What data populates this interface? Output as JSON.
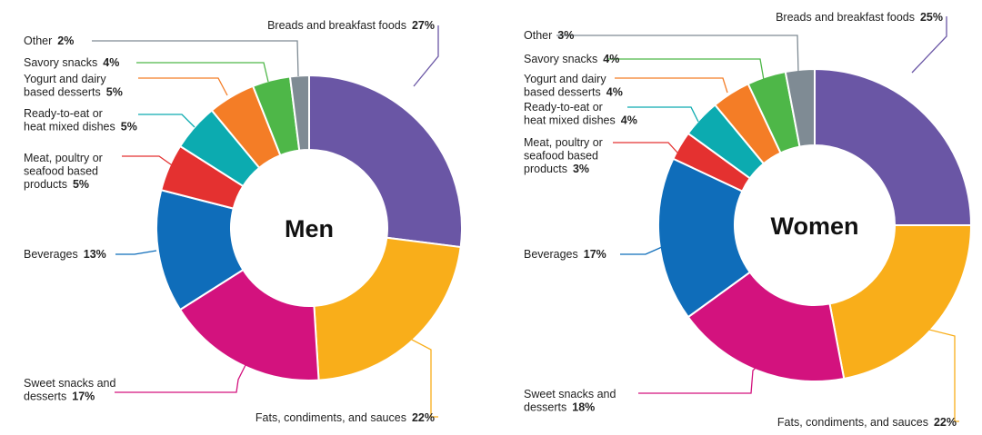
{
  "chart_data": [
    {
      "type": "pie",
      "variant": "donut",
      "title": "Men",
      "categories": [
        "Breads and breakfast foods",
        "Fats, condiments, and sauces",
        "Sweet snacks and desserts",
        "Beverages",
        "Meat, poultry or seafood based products",
        "Ready-to-eat or heat mixed dishes",
        "Yogurt and dairy based desserts",
        "Savory snacks",
        "Other"
      ],
      "values": [
        27,
        22,
        17,
        13,
        5,
        5,
        5,
        4,
        2
      ],
      "value_labels": [
        "27%",
        "22%",
        "17%",
        "13%",
        "5%",
        "5%",
        "5%",
        "4%",
        "2%"
      ],
      "label_lines": [
        [
          "Breads and breakfast foods"
        ],
        [
          "Fats, condiments, and sauces"
        ],
        [
          "Sweet snacks and",
          "desserts"
        ],
        [
          "Beverages"
        ],
        [
          "Meat, poultry or",
          "seafood based",
          "products"
        ],
        [
          "Ready-to-eat or",
          "heat mixed dishes"
        ],
        [
          "Yogurt and dairy",
          "based desserts"
        ],
        [
          "Savory snacks"
        ],
        [
          "Other"
        ]
      ],
      "colors": [
        "#6a56a5",
        "#f9ae1a",
        "#d3127e",
        "#0f6dba",
        "#e43130",
        "#0cabb0",
        "#f47d26",
        "#4eb748",
        "#7f8b94"
      ]
    },
    {
      "type": "pie",
      "variant": "donut",
      "title": "Women",
      "categories": [
        "Breads and breakfast foods",
        "Fats, condiments, and sauces",
        "Sweet snacks and desserts",
        "Beverages",
        "Meat, poultry or seafood based products",
        "Ready-to-eat or heat mixed dishes",
        "Yogurt and dairy based desserts",
        "Savory snacks",
        "Other"
      ],
      "values": [
        25,
        22,
        18,
        17,
        3,
        4,
        4,
        4,
        3
      ],
      "value_labels": [
        "25%",
        "22%",
        "18%",
        "17%",
        "3%",
        "4%",
        "4%",
        "4%",
        "3%"
      ],
      "label_lines": [
        [
          "Breads and breakfast foods"
        ],
        [
          "Fats, condiments, and sauces"
        ],
        [
          "Sweet snacks and",
          "desserts"
        ],
        [
          "Beverages"
        ],
        [
          "Meat, poultry or",
          "seafood based",
          "products"
        ],
        [
          "Ready-to-eat or",
          "heat mixed dishes"
        ],
        [
          "Yogurt and dairy",
          "based desserts"
        ],
        [
          "Savory snacks"
        ],
        [
          "Other"
        ]
      ],
      "colors": [
        "#6a56a5",
        "#f9ae1a",
        "#d3127e",
        "#0f6dba",
        "#e43130",
        "#0cabb0",
        "#f47d26",
        "#4eb748",
        "#7f8b94"
      ]
    }
  ]
}
